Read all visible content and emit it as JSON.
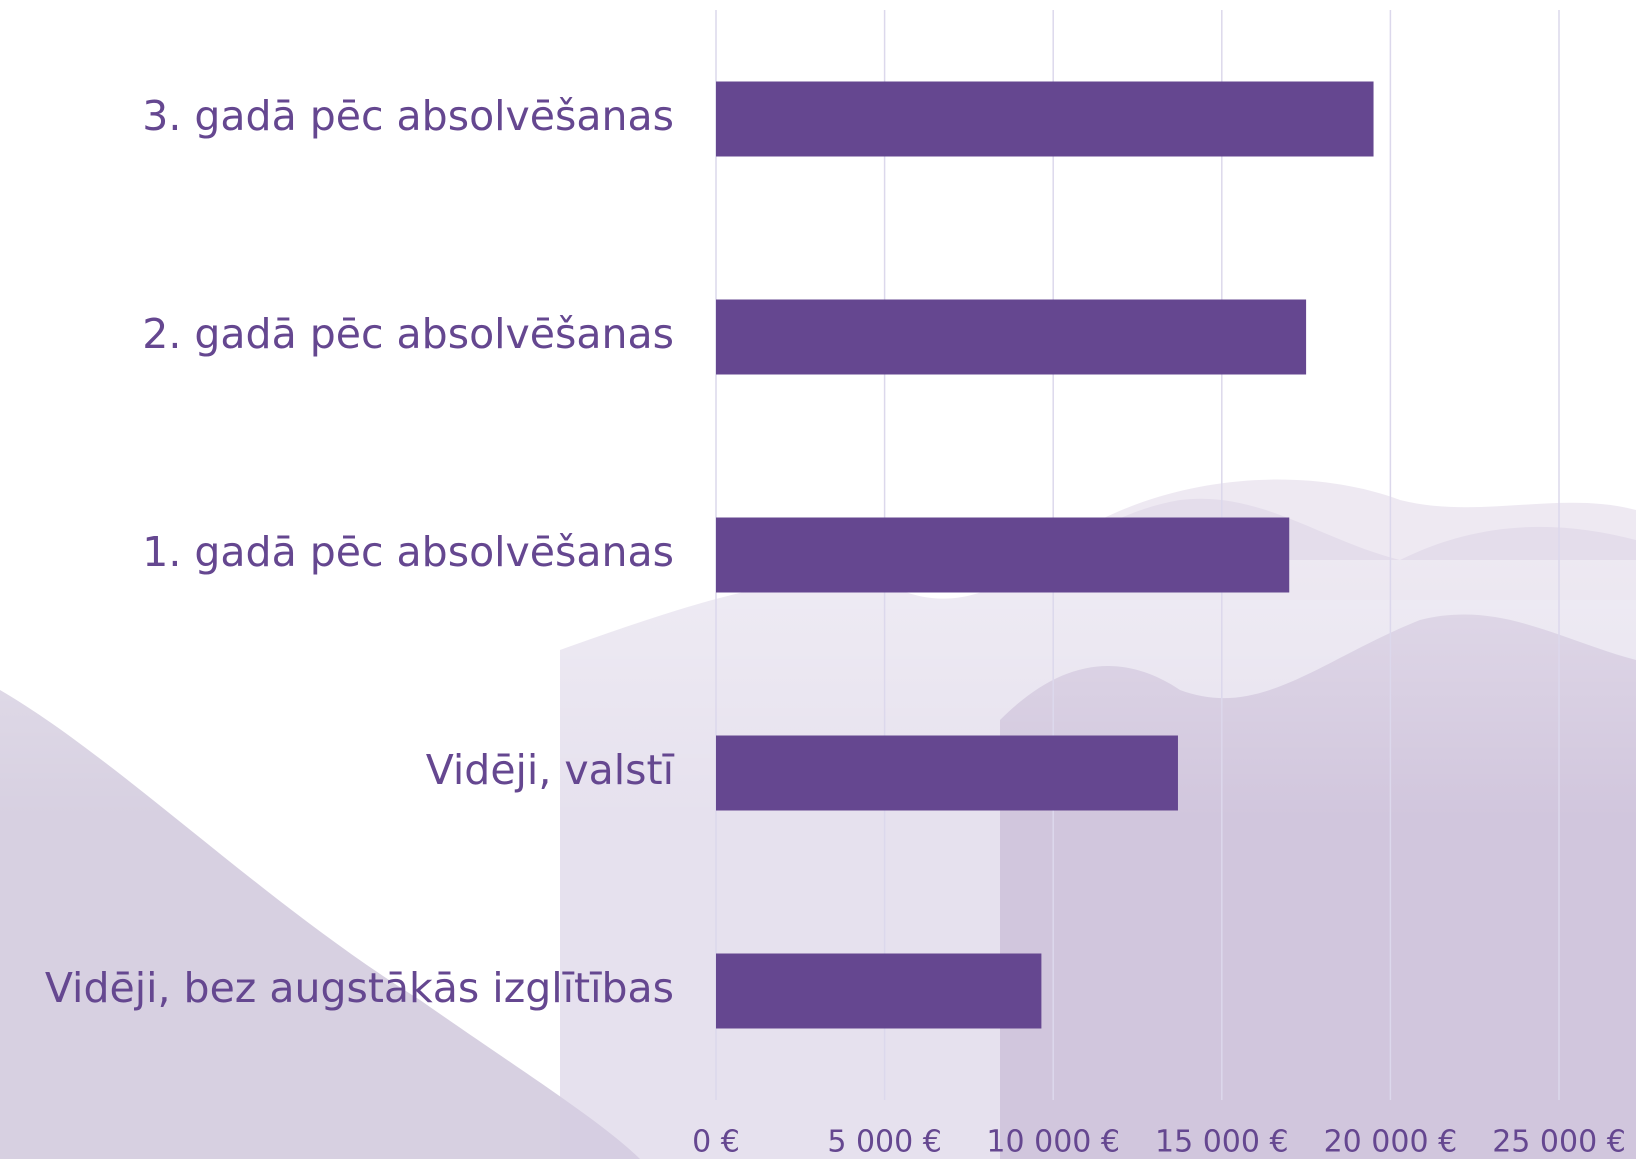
{
  "chart_data": {
    "type": "bar",
    "orientation": "horizontal",
    "categories": [
      "3. gadā pēc absolvēšanas",
      "2. gadā pēc absolvēšanas",
      "1. gadā pēc absolvēšanas",
      "Vidēji, valstī",
      "Vidēji, bez augstākās izglītības"
    ],
    "values": [
      19500,
      17500,
      17000,
      13700,
      9650
    ],
    "color": "#654790",
    "xlim": [
      0,
      25000
    ],
    "xticks": [
      {
        "value": 0,
        "label": "0 €"
      },
      {
        "value": 5000,
        "label": "5 000 €"
      },
      {
        "value": 10000,
        "label": "10 000 €"
      },
      {
        "value": 15000,
        "label": "15 000 €"
      },
      {
        "value": 20000,
        "label": "20 000 €"
      },
      {
        "value": 25000,
        "label": "25 000 €"
      }
    ],
    "grid": true
  }
}
